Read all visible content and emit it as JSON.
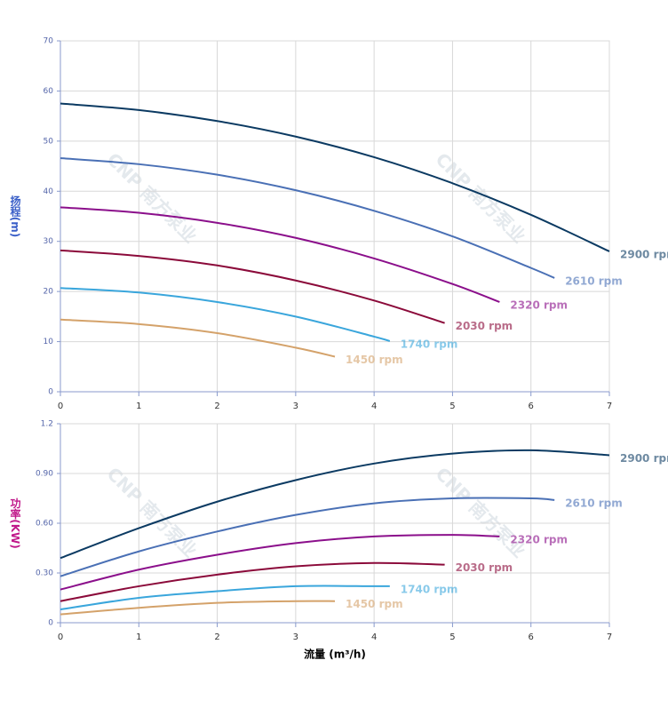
{
  "chart_data": [
    {
      "type": "line",
      "ylabel": "扬程(m)",
      "ylabel_color": "#3a5fc8",
      "watermark": "CNP 南方泵业",
      "xlim": [
        0,
        7
      ],
      "xticks": [
        0,
        1,
        2,
        3,
        4,
        5,
        6,
        7
      ],
      "ylim": [
        0,
        70
      ],
      "yticks": [
        0,
        10,
        20,
        30,
        40,
        50,
        60,
        70
      ],
      "grid": true,
      "series": [
        {
          "name": "2900 rpm",
          "color": "#0b3a62",
          "x": [
            0,
            1,
            2,
            3,
            4,
            5,
            6,
            7
          ],
          "values": [
            57.5,
            56.2,
            54.0,
            50.9,
            46.8,
            41.6,
            35.3,
            28.0
          ]
        },
        {
          "name": "2610 rpm",
          "color": "#4a70b5",
          "x": [
            0,
            1,
            2,
            3,
            4,
            5,
            6,
            6.3
          ],
          "values": [
            46.6,
            45.4,
            43.3,
            40.2,
            36.1,
            31.0,
            24.7,
            22.7
          ]
        },
        {
          "name": "2320 rpm",
          "color": "#8b0f8b",
          "x": [
            0,
            1,
            2,
            3,
            4,
            5,
            5.6
          ],
          "values": [
            36.8,
            35.7,
            33.7,
            30.7,
            26.6,
            21.5,
            17.9
          ]
        },
        {
          "name": "2030 rpm",
          "color": "#8b0a3a",
          "x": [
            0,
            1,
            2,
            3,
            4,
            4.9
          ],
          "values": [
            28.2,
            27.1,
            25.2,
            22.2,
            18.2,
            13.7
          ]
        },
        {
          "name": "1740 rpm",
          "color": "#3aa6dc",
          "x": [
            0,
            1,
            2,
            3,
            4,
            4.2
          ],
          "values": [
            20.7,
            19.8,
            17.9,
            15.0,
            11.0,
            10.1
          ]
        },
        {
          "name": "1450 rpm",
          "color": "#d4a26a",
          "x": [
            0,
            1,
            2,
            3,
            3.5
          ],
          "values": [
            14.4,
            13.5,
            11.7,
            8.8,
            7.0
          ]
        }
      ]
    },
    {
      "type": "line",
      "ylabel": "功率(KW)",
      "ylabel_color": "#c0188a",
      "xlabel": "流量 (m³/h)",
      "watermark": "CNP 南方泵业",
      "xlim": [
        0,
        7
      ],
      "xticks": [
        0,
        1,
        2,
        3,
        4,
        5,
        6,
        7
      ],
      "ylim": [
        0,
        1.2
      ],
      "yticks": [
        0,
        {
          "value": 0.3,
          "label": "0.30"
        },
        {
          "value": 0.6,
          "label": "0.60"
        },
        {
          "value": 0.9,
          "label": "0.90"
        },
        1.2
      ],
      "grid": true,
      "series": [
        {
          "name": "2900 rpm",
          "color": "#0b3a62",
          "x": [
            0,
            1,
            2,
            3,
            4,
            5,
            6,
            7
          ],
          "values": [
            0.39,
            0.57,
            0.73,
            0.86,
            0.96,
            1.02,
            1.04,
            1.01
          ]
        },
        {
          "name": "2610 rpm",
          "color": "#4a70b5",
          "x": [
            0,
            1,
            2,
            3,
            4,
            5,
            6,
            6.3
          ],
          "values": [
            0.28,
            0.43,
            0.55,
            0.65,
            0.72,
            0.75,
            0.75,
            0.74
          ]
        },
        {
          "name": "2320 rpm",
          "color": "#8b0f8b",
          "x": [
            0,
            1,
            2,
            3,
            4,
            5,
            5.6
          ],
          "values": [
            0.2,
            0.32,
            0.41,
            0.48,
            0.52,
            0.53,
            0.52
          ]
        },
        {
          "name": "2030 rpm",
          "color": "#8b0a3a",
          "x": [
            0,
            1,
            2,
            3,
            4,
            4.9
          ],
          "values": [
            0.13,
            0.22,
            0.29,
            0.34,
            0.36,
            0.35
          ]
        },
        {
          "name": "1740 rpm",
          "color": "#3aa6dc",
          "x": [
            0,
            1,
            2,
            3,
            4,
            4.2
          ],
          "values": [
            0.08,
            0.15,
            0.19,
            0.22,
            0.22,
            0.22
          ]
        },
        {
          "name": "1450 rpm",
          "color": "#d4a26a",
          "x": [
            0,
            1,
            2,
            3,
            3.5
          ],
          "values": [
            0.05,
            0.09,
            0.12,
            0.13,
            0.13
          ]
        }
      ]
    }
  ]
}
